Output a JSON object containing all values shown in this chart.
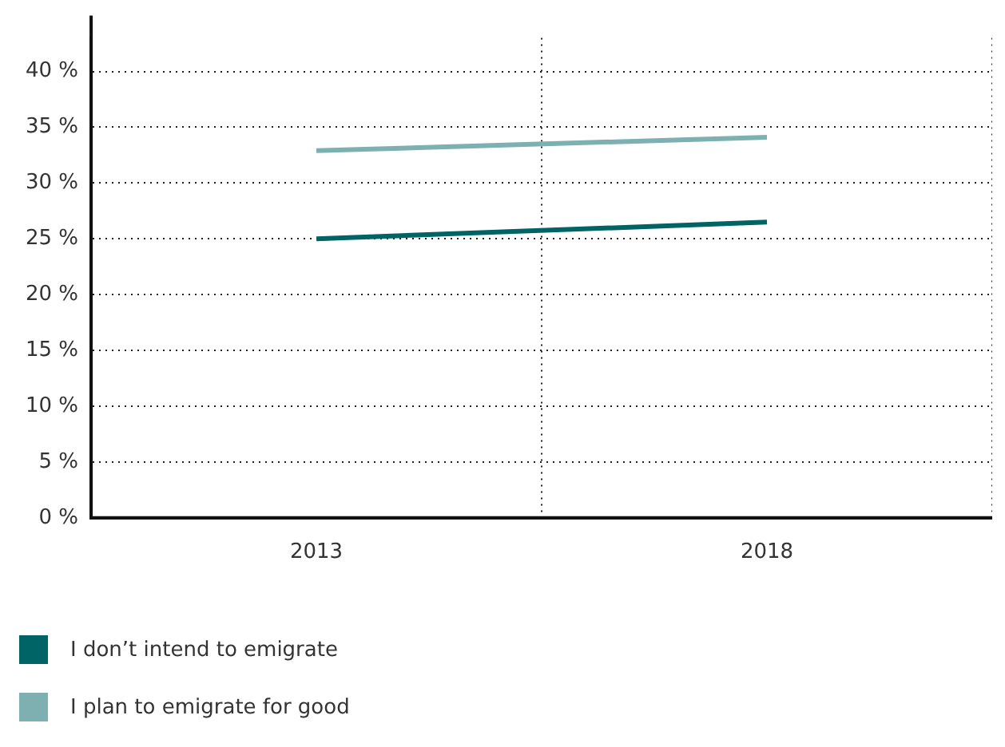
{
  "chart_data": {
    "type": "line",
    "categories": [
      "2013",
      "2018"
    ],
    "series": [
      {
        "name": "I don’t intend to emigrate",
        "color": "#006466",
        "values": [
          25.0,
          26.5
        ]
      },
      {
        "name": "I plan to emigrate for good",
        "color": "#7fb0b1",
        "values": [
          32.9,
          34.1
        ]
      }
    ],
    "ylim": [
      0,
      43
    ],
    "yticks": [
      {
        "value": 0,
        "label": "0 %"
      },
      {
        "value": 5,
        "label": "5 %"
      },
      {
        "value": 10,
        "label": "10 %"
      },
      {
        "value": 15,
        "label": "15 %"
      },
      {
        "value": 20,
        "label": "20 %"
      },
      {
        "value": 25,
        "label": "25 %"
      },
      {
        "value": 30,
        "label": "30 %"
      },
      {
        "value": 35,
        "label": "35 %"
      },
      {
        "value": 40,
        "label": "40 %"
      }
    ],
    "grid": true,
    "legend": "bottom left",
    "marker": "none",
    "line_style": "solid"
  }
}
